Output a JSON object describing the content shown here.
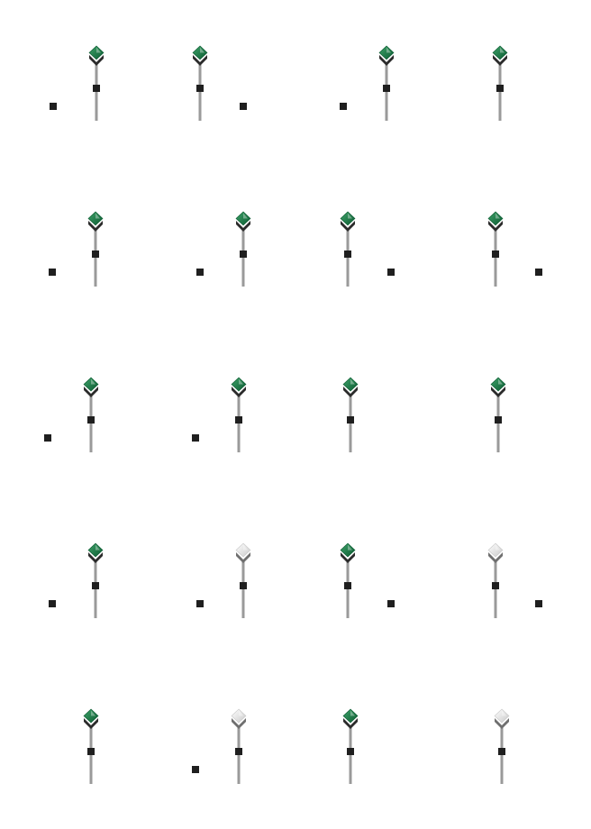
{
  "sheet": {
    "rows": [
      {
        "sprites": [
          {
            "variant": "green",
            "side_marker": "left"
          },
          {
            "variant": "green",
            "side_marker": "right"
          },
          {
            "variant": "green",
            "side_marker": "left"
          },
          {
            "variant": "green",
            "side_marker": "none"
          }
        ]
      },
      {
        "sprites": [
          {
            "variant": "green",
            "side_marker": "left"
          },
          {
            "variant": "green",
            "side_marker": "left"
          },
          {
            "variant": "green",
            "side_marker": "right"
          },
          {
            "variant": "green",
            "side_marker": "right"
          }
        ]
      },
      {
        "sprites": [
          {
            "variant": "green",
            "side_marker": "left"
          },
          {
            "variant": "green",
            "side_marker": "left"
          },
          {
            "variant": "green",
            "side_marker": "none"
          },
          {
            "variant": "green",
            "side_marker": "none"
          }
        ]
      },
      {
        "sprites": [
          {
            "variant": "green",
            "side_marker": "left"
          },
          {
            "variant": "white",
            "side_marker": "left"
          },
          {
            "variant": "green",
            "side_marker": "right"
          },
          {
            "variant": "white",
            "side_marker": "right"
          }
        ]
      },
      {
        "sprites": [
          {
            "variant": "green",
            "side_marker": "none"
          },
          {
            "variant": "white",
            "side_marker": "left"
          },
          {
            "variant": "green",
            "side_marker": "none"
          },
          {
            "variant": "white",
            "side_marker": "none"
          }
        ]
      }
    ],
    "colors": {
      "gem_green_light": "#3fa36a",
      "gem_green_dark": "#0b5a31",
      "gem_white_light": "#ffffff",
      "gem_white_dark": "#c9c9c9",
      "chevron": "#2b2b2b",
      "chevron_white": "#6f6f6f",
      "pole": "#9a9a9a",
      "marker": "#1f1f1f"
    }
  }
}
